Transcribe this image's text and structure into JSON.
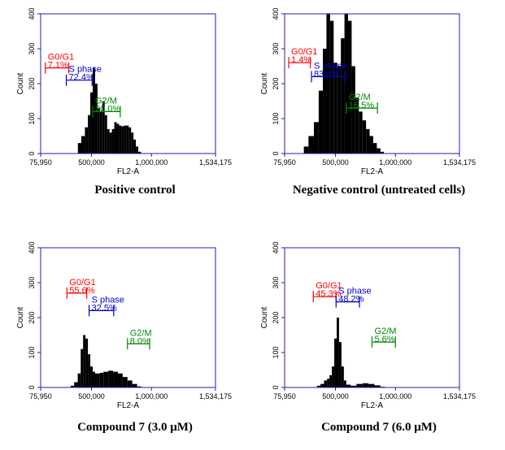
{
  "chart_data": [
    {
      "type": "area",
      "caption": "Positive control",
      "xlabel": "FL2-A",
      "ylabel": "Count",
      "xlim": [
        75950,
        1534175
      ],
      "ylim": [
        0,
        400
      ],
      "x_ticks": [
        "75,950",
        "500,000",
        "1,000,000",
        "1,534,175"
      ],
      "y_ticks": [
        "0",
        "100",
        "200",
        "300",
        "400"
      ],
      "histogram": {
        "x": [
          400000,
          430000,
          460000,
          480000,
          500000,
          520000,
          540000,
          560000,
          580000,
          600000,
          620000,
          640000,
          660000,
          680000,
          700000,
          720000,
          740000,
          760000,
          780000,
          800000,
          820000,
          840000,
          860000,
          880000,
          900000
        ],
        "y": [
          30,
          50,
          75,
          110,
          175,
          245,
          200,
          130,
          120,
          150,
          110,
          70,
          60,
          70,
          90,
          85,
          80,
          78,
          80,
          80,
          75,
          60,
          40,
          20,
          5
        ]
      },
      "gates": [
        {
          "name": "G0/G1",
          "value": "7.1%",
          "color": "#ff0000",
          "range": [
            115000,
            310000
          ],
          "level": 245
        },
        {
          "name": "S phase",
          "value": "72.4%",
          "color": "#0000cc",
          "range": [
            290000,
            505000
          ],
          "level": 210
        },
        {
          "name": "G2/M",
          "value": "20.0%",
          "color": "#008800",
          "range": [
            510000,
            740000
          ],
          "level": 120
        }
      ]
    },
    {
      "type": "area",
      "caption": "Negative control (untreated cells)",
      "xlabel": "FL2-A",
      "ylabel": "Count",
      "xlim": [
        75950,
        1534175
      ],
      "ylim": [
        0,
        400
      ],
      "x_ticks": [
        "75,950",
        "500,000",
        "1,000,000",
        "1,534,175"
      ],
      "y_ticks": [
        "0",
        "100",
        "200",
        "300",
        "400"
      ],
      "histogram": {
        "x": [
          250000,
          300000,
          340000,
          380000,
          410000,
          440000,
          470000,
          500000,
          530000,
          560000,
          590000,
          620000,
          650000,
          680000,
          710000,
          740000,
          770000,
          800000,
          830000,
          860000,
          890000
        ],
        "y": [
          20,
          50,
          90,
          180,
          300,
          400,
          380,
          260,
          250,
          330,
          400,
          380,
          250,
          160,
          120,
          95,
          70,
          50,
          30,
          15,
          5
        ]
      },
      "gates": [
        {
          "name": "G0/G1",
          "value": "1.4%",
          "color": "#ff0000",
          "range": [
            110000,
            290000
          ],
          "level": 260
        },
        {
          "name": "S phase",
          "value": "83.4%",
          "color": "#0000cc",
          "range": [
            300000,
            585000
          ],
          "level": 220
        },
        {
          "name": "G2/M",
          "value": "16.5%",
          "color": "#008800",
          "range": [
            590000,
            850000
          ],
          "level": 130
        }
      ]
    },
    {
      "type": "area",
      "caption": "Compound 7 (3.0 μM)",
      "xlabel": "FL2-A",
      "ylabel": "Count",
      "xlim": [
        75950,
        1534175
      ],
      "ylim": [
        0,
        400
      ],
      "x_ticks": [
        "75,950",
        "500,000",
        "1,000,000",
        "1,534,175"
      ],
      "y_ticks": [
        "0",
        "100",
        "200",
        "300",
        "400"
      ],
      "histogram": {
        "x": [
          340000,
          370000,
          400000,
          420000,
          440000,
          460000,
          480000,
          500000,
          520000,
          540000,
          560000,
          580000,
          620000,
          660000,
          700000,
          740000,
          780000,
          820000,
          860000,
          900000
        ],
        "y": [
          5,
          15,
          40,
          110,
          150,
          140,
          95,
          60,
          45,
          40,
          40,
          42,
          45,
          48,
          45,
          40,
          30,
          20,
          10,
          3
        ]
      },
      "gates": [
        {
          "name": "G0/G1",
          "value": "55.6%",
          "color": "#ff0000",
          "range": [
            295000,
            460000
          ],
          "level": 270
        },
        {
          "name": "S phase",
          "value": "32.5%",
          "color": "#0000cc",
          "range": [
            480000,
            685000
          ],
          "level": 220
        },
        {
          "name": "G2/M",
          "value": "8.0%",
          "color": "#008800",
          "range": [
            800000,
            985000
          ],
          "level": 125
        }
      ]
    },
    {
      "type": "area",
      "caption": "Compound 7 (6.0 μM)",
      "xlabel": "FL2-A",
      "ylabel": "Count",
      "xlim": [
        75950,
        1534175
      ],
      "ylim": [
        0,
        400
      ],
      "x_ticks": [
        "75,950",
        "500,000",
        "1,000,000",
        "1,534,175"
      ],
      "y_ticks": [
        "0",
        "100",
        "200",
        "300",
        "400"
      ],
      "histogram": {
        "x": [
          360000,
          390000,
          420000,
          440000,
          460000,
          480000,
          500000,
          520000,
          540000,
          560000,
          580000,
          600000,
          650000,
          700000,
          750000,
          800000,
          850000,
          900000
        ],
        "y": [
          5,
          10,
          20,
          25,
          35,
          60,
          140,
          200,
          130,
          60,
          20,
          8,
          5,
          10,
          12,
          10,
          6,
          2
        ]
      },
      "gates": [
        {
          "name": "G0/G1",
          "value": "45.3%",
          "color": "#ff0000",
          "range": [
            315000,
            505000
          ],
          "level": 260
        },
        {
          "name": "S phase",
          "value": "48.2%",
          "color": "#0000cc",
          "range": [
            505000,
            700000
          ],
          "level": 245
        },
        {
          "name": "G2/M",
          "value": "5.6%",
          "color": "#008800",
          "range": [
            805000,
            1000000
          ],
          "level": 130
        }
      ]
    }
  ]
}
